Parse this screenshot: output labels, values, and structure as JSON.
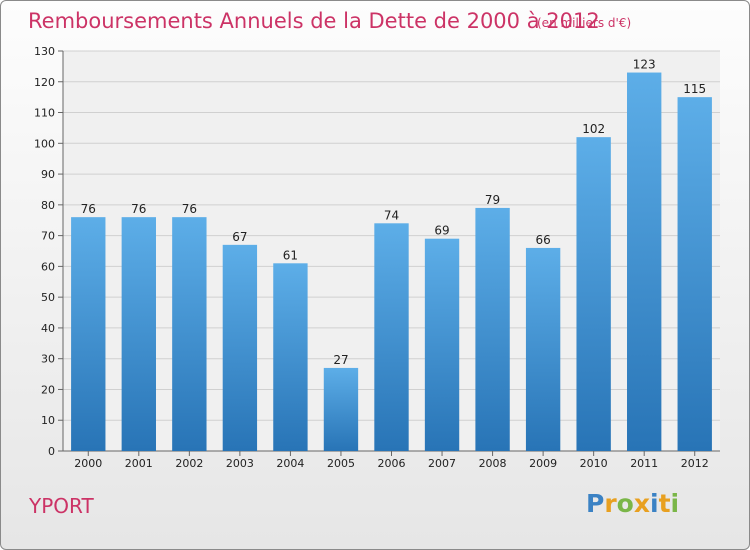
{
  "title": "Remboursements Annuels de la Dette de 2000 à 2012",
  "subtitle": "(en milliers d'€)",
  "place": "YPORT",
  "brand": {
    "letters": [
      "P",
      "r",
      "o",
      "x",
      "i",
      "t",
      "i"
    ],
    "colors": [
      "#3b82c4",
      "#e8a020",
      "#7ab648",
      "#e8a020",
      "#3b82c4",
      "#e8a020",
      "#7ab648"
    ]
  },
  "colors": {
    "bar_top": "#5daee8",
    "bar_bottom": "#2874b6",
    "title": "#cc3366",
    "grid": "#d0d0d0"
  },
  "chart_data": {
    "type": "bar",
    "title": "Remboursements Annuels de la Dette de 2000 à 2012",
    "xlabel": "",
    "ylabel": "",
    "categories": [
      "2000",
      "2001",
      "2002",
      "2003",
      "2004",
      "2005",
      "2006",
      "2007",
      "2008",
      "2009",
      "2010",
      "2011",
      "2012"
    ],
    "values": [
      76,
      76,
      76,
      67,
      61,
      27,
      74,
      69,
      79,
      66,
      102,
      123,
      115
    ],
    "ylim": [
      0,
      130
    ],
    "yticks": [
      0,
      10,
      20,
      30,
      40,
      50,
      60,
      70,
      80,
      90,
      100,
      110,
      120,
      130
    ],
    "grid": true
  }
}
